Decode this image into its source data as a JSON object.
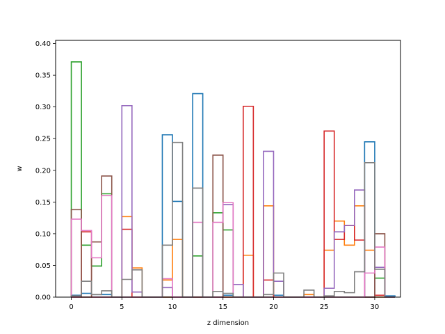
{
  "chart_data": {
    "type": "step-histogram",
    "xlabel": "z dimension",
    "ylabel": "w",
    "xlim": [
      -1.55,
      32.55
    ],
    "ylim": [
      0,
      0.405
    ],
    "xticks": [
      0,
      5,
      10,
      15,
      20,
      25,
      30
    ],
    "yticks": [
      0.0,
      0.05,
      0.1,
      0.15,
      0.2,
      0.25,
      0.3,
      0.35,
      0.4
    ],
    "ytick_labels": [
      "0.00",
      "0.05",
      "0.10",
      "0.15",
      "0.20",
      "0.25",
      "0.30",
      "0.35",
      "0.40"
    ],
    "bins": 32,
    "series": [
      {
        "color": "#1f77b4",
        "values": [
          0.003,
          0.006,
          0.004,
          0.004,
          0,
          0,
          0,
          0,
          0,
          0.256,
          0.151,
          0,
          0.321,
          0,
          0,
          0.003,
          0,
          0,
          0,
          0,
          0.003,
          0,
          0,
          0,
          0,
          0,
          0,
          0,
          0,
          0.245,
          0,
          0.002
        ]
      },
      {
        "color": "#ff7f0e",
        "values": [
          0,
          0,
          0,
          0,
          0,
          0.127,
          0.046,
          0,
          0,
          0.027,
          0.091,
          0,
          0,
          0,
          0,
          0,
          0,
          0.066,
          0,
          0.144,
          0,
          0,
          0,
          0.004,
          0,
          0.074,
          0.12,
          0.082,
          0.144,
          0.074,
          0,
          0
        ]
      },
      {
        "color": "#2ca02c",
        "values": [
          0.371,
          0.082,
          0.049,
          0.163,
          0,
          0,
          0,
          0,
          0,
          0,
          0,
          0,
          0.065,
          0,
          0.133,
          0.106,
          0,
          0,
          0,
          0,
          0,
          0,
          0,
          0,
          0,
          0,
          0,
          0,
          0,
          0,
          0.03,
          0
        ]
      },
      {
        "color": "#d62728",
        "values": [
          0,
          0.103,
          0,
          0,
          0,
          0.107,
          0,
          0,
          0,
          0,
          0,
          0,
          0,
          0,
          0,
          0,
          0,
          0.301,
          0,
          0.027,
          0,
          0,
          0,
          0,
          0,
          0.262,
          0.091,
          0.113,
          0.09,
          0,
          0.003,
          0
        ]
      },
      {
        "color": "#9467bd",
        "values": [
          0,
          0,
          0,
          0,
          0,
          0.302,
          0.008,
          0,
          0,
          0.015,
          0,
          0,
          0,
          0,
          0,
          0.146,
          0.02,
          0,
          0,
          0.23,
          0.025,
          0,
          0,
          0,
          0,
          0.014,
          0.103,
          0.113,
          0.169,
          0,
          0.047,
          0
        ]
      },
      {
        "color": "#8c564b",
        "values": [
          0.138,
          0,
          0.087,
          0.191,
          0,
          0,
          0,
          0,
          0,
          0,
          0,
          0,
          0,
          0,
          0.224,
          0,
          0,
          0,
          0,
          0,
          0,
          0,
          0,
          0,
          0,
          0,
          0,
          0,
          0,
          0,
          0.1,
          0
        ]
      },
      {
        "color": "#e377c2",
        "values": [
          0.123,
          0.105,
          0.062,
          0.16,
          0,
          0,
          0,
          0,
          0,
          0.029,
          0,
          0,
          0.118,
          0,
          0.118,
          0.149,
          0,
          0,
          0,
          0,
          0,
          0,
          0,
          0,
          0,
          0,
          0,
          0,
          0,
          0.038,
          0.079,
          0
        ]
      },
      {
        "color": "#7f7f7f",
        "values": [
          0.002,
          0.025,
          0.004,
          0.01,
          0,
          0.028,
          0.043,
          0,
          0,
          0.082,
          0.244,
          0,
          0.172,
          0,
          0.009,
          0.006,
          0,
          0,
          0,
          0.004,
          0.038,
          0,
          0,
          0.011,
          0,
          0.002,
          0.009,
          0.007,
          0.04,
          0.212,
          0.044,
          0
        ]
      }
    ]
  }
}
